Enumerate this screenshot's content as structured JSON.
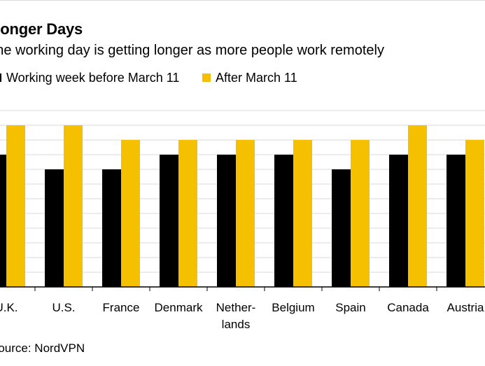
{
  "title": "Longer Days",
  "subtitle": "The working day is getting longer as more people work remotely",
  "source": "Source: NordVPN",
  "chart_data": {
    "type": "bar",
    "title": "Longer Days",
    "subtitle": "The working day is getting longer as more people work remotely",
    "categories": [
      "U.K.",
      "U.S.",
      "France",
      "Denmark",
      "Netherlands",
      "Belgium",
      "Spain",
      "Canada",
      "Austria"
    ],
    "category_labels": [
      [
        "U.K."
      ],
      [
        "U.S."
      ],
      [
        "France"
      ],
      [
        "Denmark"
      ],
      [
        "Nether-",
        "lands"
      ],
      [
        "Belgium"
      ],
      [
        "Spain"
      ],
      [
        "Canada"
      ],
      [
        "Austria"
      ]
    ],
    "series": [
      {
        "name": "Working week before March 11",
        "color": "#000000",
        "values": [
          9,
          8,
          8,
          9,
          9,
          9,
          8,
          9,
          9
        ]
      },
      {
        "name": "After March 11",
        "color": "#f5c000",
        "values": [
          11,
          11,
          10,
          10,
          10,
          10,
          10,
          11,
          10
        ]
      }
    ],
    "ylim": [
      0,
      12
    ],
    "grid": true,
    "legend_position": "top-left"
  }
}
